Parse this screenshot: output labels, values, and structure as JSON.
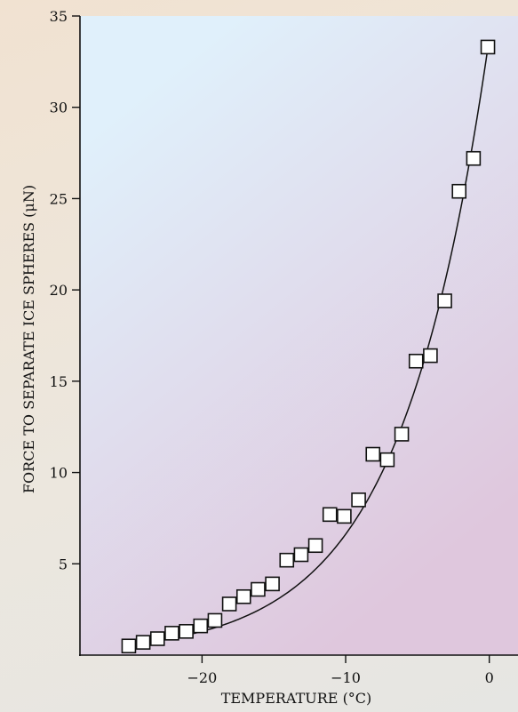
{
  "chart_data": {
    "type": "scatter",
    "title": "",
    "xlabel": "TEMPERATURE (°C)",
    "ylabel": "FORCE TO SEPARATE ICE SPHERES (μN)",
    "xlim": [
      -28.5,
      2
    ],
    "ylim": [
      0,
      35
    ],
    "x_ticks": [
      -20,
      -10,
      0
    ],
    "x_tick_labels": [
      "−20",
      "−10",
      "0"
    ],
    "y_ticks": [
      5,
      10,
      15,
      20,
      25,
      30,
      35
    ],
    "y_tick_labels": [
      "5",
      "10",
      "15",
      "20",
      "25",
      "30",
      "35"
    ],
    "grid": false,
    "colors": {
      "plot_gradient_top": "#e0f0fb",
      "plot_gradient_bottom": "#dfc7dd",
      "marker_fill": "#ffffff",
      "marker_stroke": "#111111",
      "curve": "#111111"
    },
    "series": [
      {
        "marker": "square",
        "x": [
          -25.1,
          -24.1,
          -23.1,
          -22.1,
          -21.1,
          -20.1,
          -19.1,
          -18.1,
          -17.1,
          -16.1,
          -15.1,
          -14.1,
          -13.1,
          -12.1,
          -11.1,
          -10.1,
          -9.1,
          -8.1,
          -7.1,
          -6.1,
          -5.1,
          -4.1,
          -3.1,
          -2.1,
          -1.1,
          -0.1
        ],
        "y": [
          0.5,
          0.7,
          0.9,
          1.2,
          1.3,
          1.6,
          1.9,
          2.8,
          3.2,
          3.6,
          3.9,
          5.2,
          5.5,
          6.0,
          7.7,
          7.6,
          8.5,
          11.0,
          10.7,
          12.1,
          16.1,
          16.4,
          19.4,
          25.4,
          27.2,
          33.3
        ]
      }
    ],
    "fit_curve": {
      "type": "exponential",
      "a": 33.8,
      "b": 0.163
    }
  }
}
